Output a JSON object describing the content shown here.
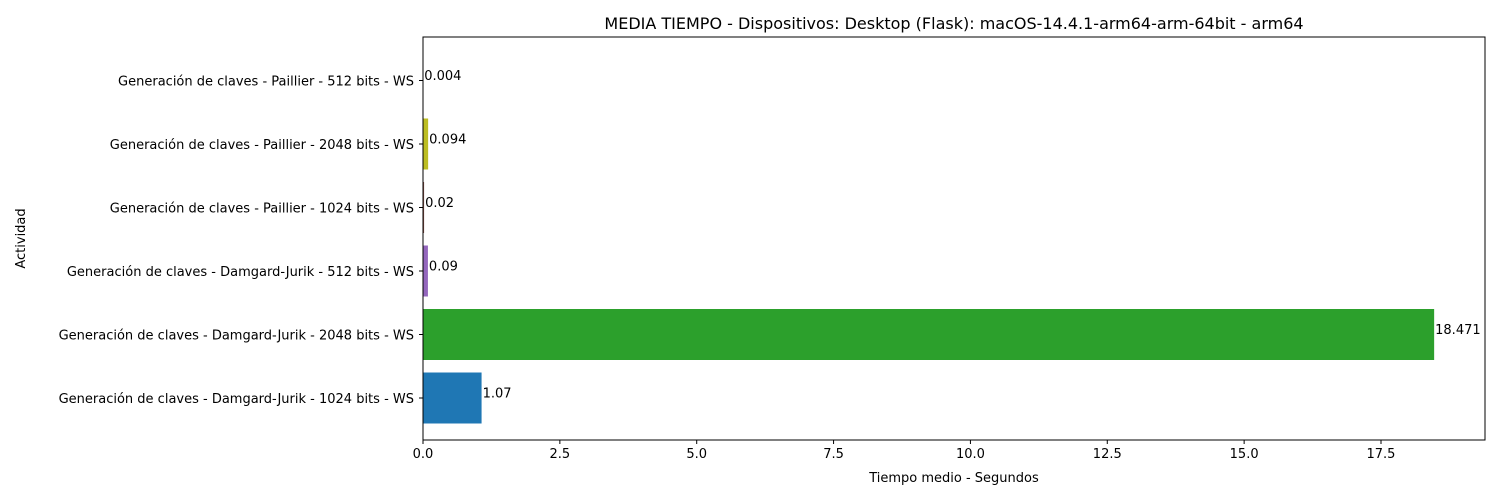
{
  "chart_data": {
    "type": "bar",
    "orientation": "horizontal",
    "title": "MEDIA TIEMPO - Dispositivos: Desktop (Flask): macOS-14.4.1-arm64-arm-64bit - arm64",
    "xlabel": "Tiempo medio - Segundos",
    "ylabel": "Actividad",
    "xlim": [
      0,
      19.4
    ],
    "xticks": [
      0,
      2.5,
      5,
      7.5,
      10,
      12.5,
      15,
      17.5
    ],
    "xtick_labels": [
      "0.0",
      "2.5",
      "5.0",
      "7.5",
      "10.0",
      "12.5",
      "15.0",
      "17.5"
    ],
    "grid": false,
    "categories": [
      "Generación de claves - Damgard-Jurik - 1024 bits - WS",
      "Generación de claves - Damgard-Jurik - 2048 bits - WS",
      "Generación de claves - Damgard-Jurik - 512 bits - WS",
      "Generación de claves - Paillier - 1024 bits - WS",
      "Generación de claves - Paillier - 2048 bits - WS",
      "Generación de claves - Paillier - 512 bits - WS"
    ],
    "values": [
      1.07,
      18.471,
      0.09,
      0.02,
      0.094,
      0.004
    ],
    "data_labels": [
      "1.07",
      "18.471",
      "0.09",
      "0.02",
      "0.094",
      "0.004"
    ],
    "colors": [
      "#1f77b4",
      "#2ca02c",
      "#9467bd",
      "#8c564b",
      "#bcbd22",
      "#ff7f0e"
    ]
  }
}
